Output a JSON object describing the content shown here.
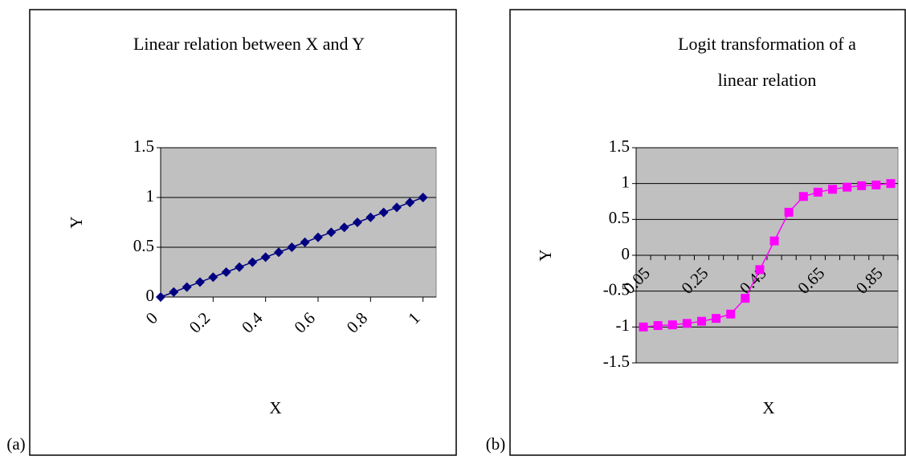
{
  "chart_data": [
    {
      "type": "line",
      "marker": "diamond",
      "panel_label": "(a)",
      "title": "Linear relation between X and Y",
      "x_label": "X",
      "y_label": "Y",
      "x": [
        0,
        0.05,
        0.1,
        0.15,
        0.2,
        0.25,
        0.3,
        0.35,
        0.4,
        0.45,
        0.5,
        0.55,
        0.6,
        0.65,
        0.7,
        0.75,
        0.8,
        0.85,
        0.9,
        0.95,
        1
      ],
      "values": [
        0,
        0.05,
        0.1,
        0.15,
        0.2,
        0.25,
        0.3,
        0.35,
        0.4,
        0.45,
        0.5,
        0.55,
        0.6,
        0.65,
        0.7,
        0.75,
        0.8,
        0.85,
        0.9,
        0.95,
        1
      ],
      "color": "#000080",
      "xlim": [
        0,
        1.05
      ],
      "xticks": [
        0,
        0.2,
        0.4,
        0.6,
        0.8,
        1
      ],
      "ylim": [
        0,
        1.5
      ],
      "yticks": [
        0,
        0.5,
        1,
        1.5
      ],
      "grid": true,
      "plot_background": "#c0c0c0"
    },
    {
      "type": "line",
      "marker": "square",
      "panel_label": "(b)",
      "title": "Logit transformation of a linear relation",
      "x_label": "X",
      "y_label": "Y",
      "categories": [
        0.05,
        null,
        null,
        null,
        0.25,
        null,
        null,
        null,
        0.45,
        null,
        null,
        null,
        0.65,
        null,
        null,
        null,
        0.85,
        null
      ],
      "values": [
        -1,
        -0.98,
        -0.97,
        -0.95,
        -0.92,
        -0.88,
        -0.82,
        -0.6,
        -0.2,
        0.2,
        0.6,
        0.82,
        0.88,
        0.92,
        0.95,
        0.97,
        0.98,
        1
      ],
      "color": "#ff00ff",
      "ylim": [
        -1.5,
        1.5
      ],
      "yticks": [
        -1.5,
        -1,
        -0.5,
        0,
        0.5,
        1,
        1.5
      ],
      "grid": true,
      "plot_background": "#c0c0c0"
    }
  ]
}
